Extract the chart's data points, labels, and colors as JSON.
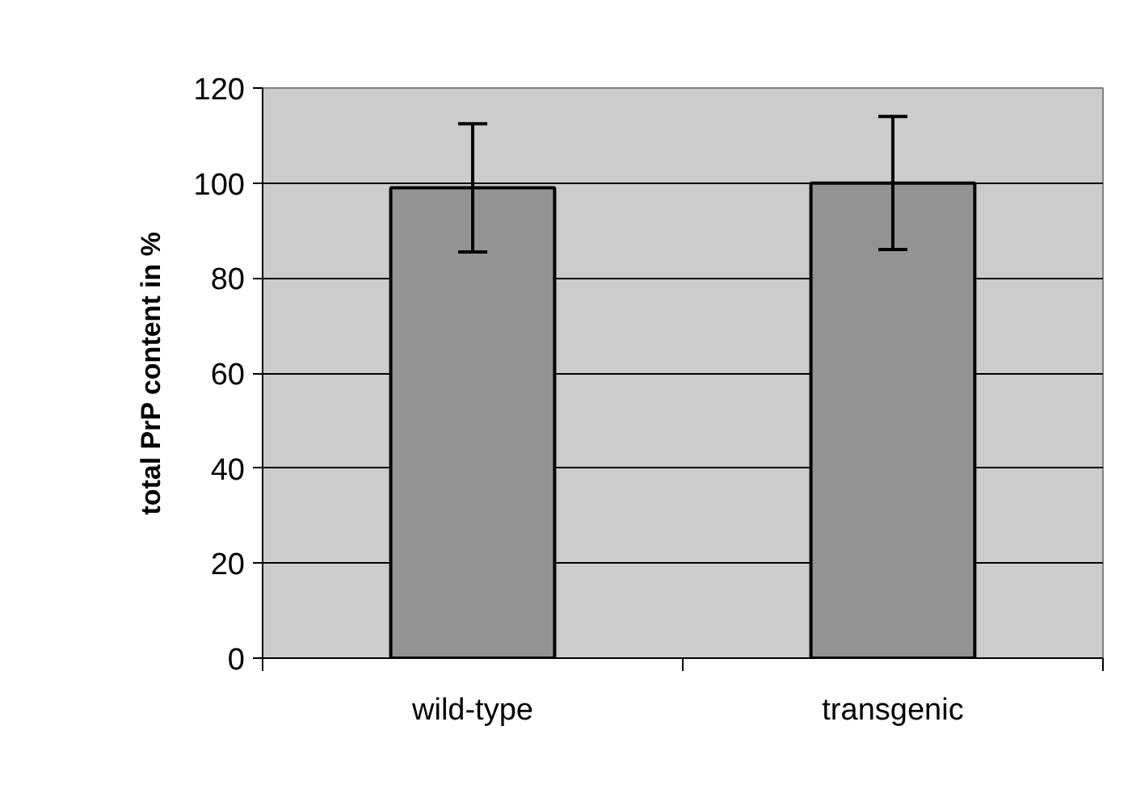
{
  "chart_data": {
    "type": "bar",
    "ylabel": "total PrP content in %",
    "categories": [
      "wild-type",
      "transgenic"
    ],
    "values": [
      99,
      100
    ],
    "errors": [
      13.5,
      14
    ],
    "color": "#939393",
    "ylim": [
      0,
      120
    ],
    "yticks": [
      0,
      20,
      40,
      60,
      80,
      100,
      120
    ],
    "grid": "y"
  }
}
